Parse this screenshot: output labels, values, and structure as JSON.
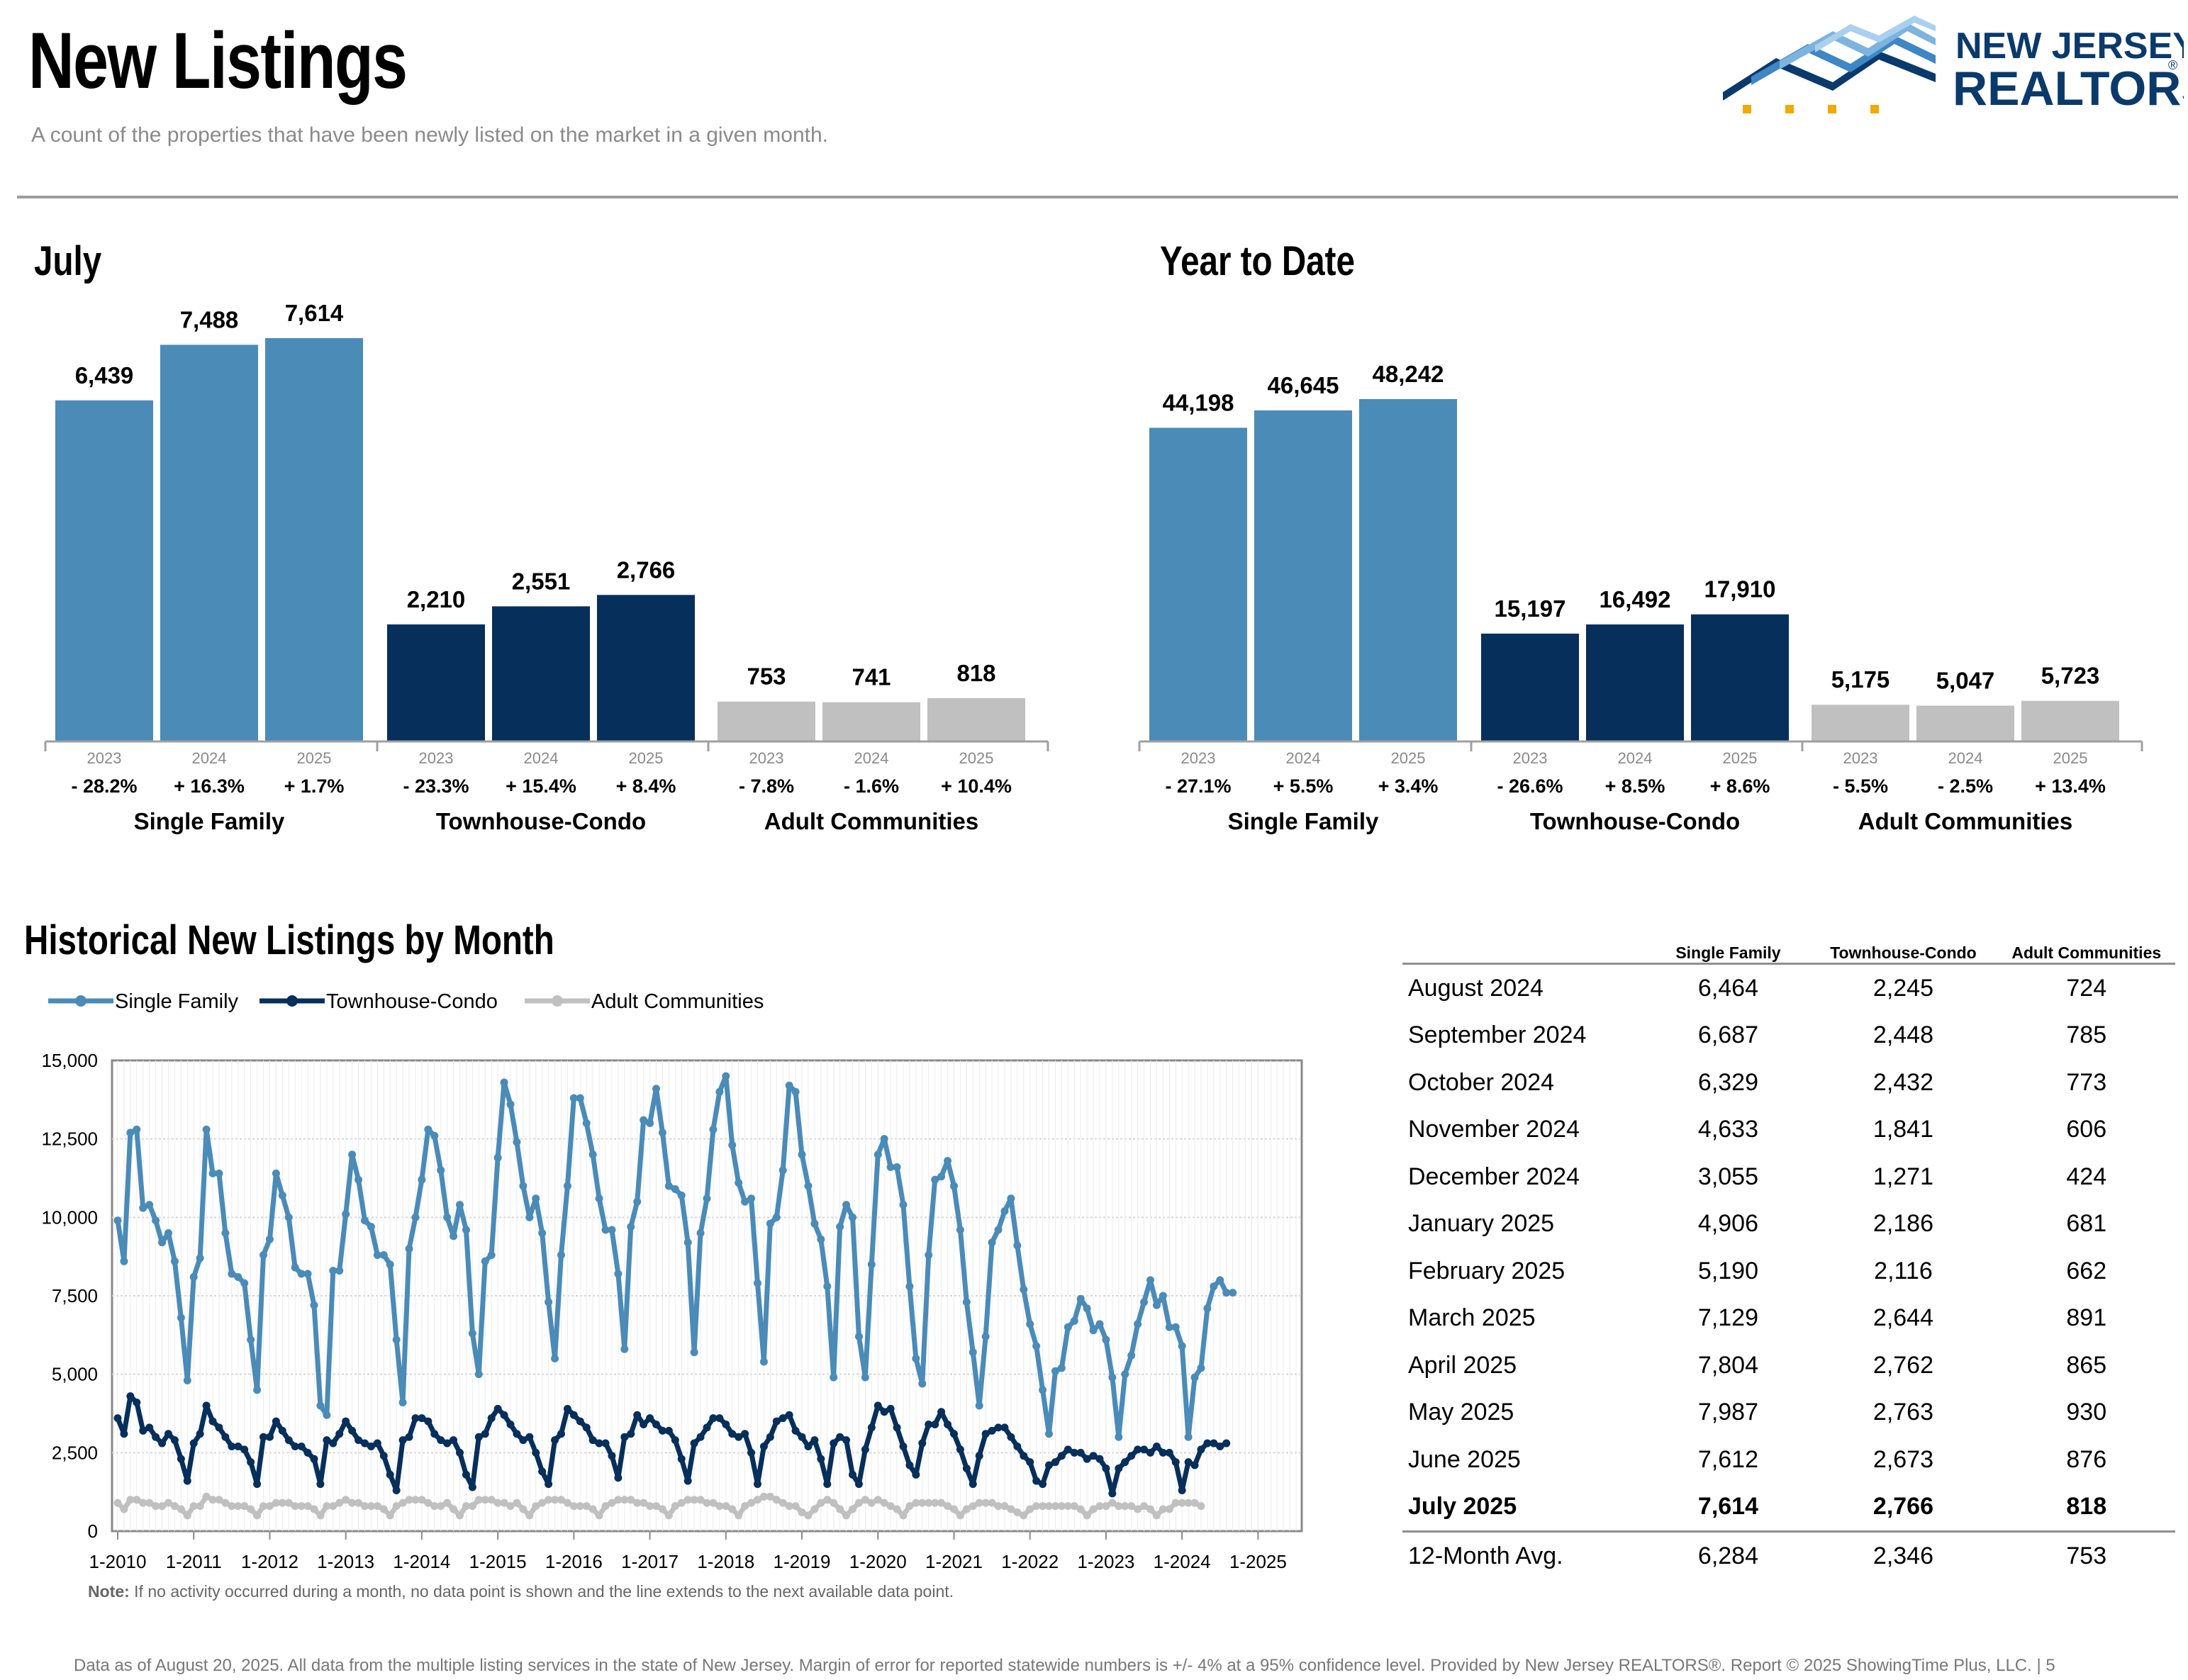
{
  "header": {
    "title": "New Listings",
    "subtitle": "A count of the properties that have been newly listed on the market in a given month.",
    "logo": {
      "line1": "NEW JERSEY",
      "line2": "REALTORS",
      "registered": "®"
    }
  },
  "colors": {
    "single_family": "#4a8bb8",
    "townhouse_condo": "#062f5b",
    "adult_communities": "#c0c0c0"
  },
  "chart_data": [
    {
      "id": "july",
      "type": "bar",
      "title": "July",
      "groups": [
        {
          "name": "Single Family",
          "years": [
            "2023",
            "2024",
            "2025"
          ],
          "values": [
            6439,
            7488,
            7614
          ],
          "value_labels": [
            "6,439",
            "7,488",
            "7,614"
          ],
          "changes": [
            "- 28.2%",
            "+ 16.3%",
            "+ 1.7%"
          ]
        },
        {
          "name": "Townhouse-Condo",
          "years": [
            "2023",
            "2024",
            "2025"
          ],
          "values": [
            2210,
            2551,
            2766
          ],
          "value_labels": [
            "2,210",
            "2,551",
            "2,766"
          ],
          "changes": [
            "- 23.3%",
            "+ 15.4%",
            "+ 8.4%"
          ]
        },
        {
          "name": "Adult Communities",
          "years": [
            "2023",
            "2024",
            "2025"
          ],
          "values": [
            753,
            741,
            818
          ],
          "value_labels": [
            "753",
            "741",
            "818"
          ],
          "changes": [
            "- 7.8%",
            "- 1.6%",
            "+ 10.4%"
          ]
        }
      ]
    },
    {
      "id": "ytd",
      "type": "bar",
      "title": "Year to Date",
      "groups": [
        {
          "name": "Single Family",
          "years": [
            "2023",
            "2024",
            "2025"
          ],
          "values": [
            44198,
            46645,
            48242
          ],
          "value_labels": [
            "44,198",
            "46,645",
            "48,242"
          ],
          "changes": [
            "- 27.1%",
            "+ 5.5%",
            "+ 3.4%"
          ]
        },
        {
          "name": "Townhouse-Condo",
          "years": [
            "2023",
            "2024",
            "2025"
          ],
          "values": [
            15197,
            16492,
            17910
          ],
          "value_labels": [
            "15,197",
            "16,492",
            "17,910"
          ],
          "changes": [
            "- 26.6%",
            "+ 8.5%",
            "+ 8.6%"
          ]
        },
        {
          "name": "Adult Communities",
          "years": [
            "2023",
            "2024",
            "2025"
          ],
          "values": [
            5175,
            5047,
            5723
          ],
          "value_labels": [
            "5,175",
            "5,047",
            "5,723"
          ],
          "changes": [
            "- 5.5%",
            "- 2.5%",
            "+ 13.4%"
          ]
        }
      ]
    },
    {
      "id": "historical",
      "type": "line",
      "title": "Historical New Listings by Month",
      "x_start": "1-2010",
      "x_ticks": [
        "1-2010",
        "1-2011",
        "1-2012",
        "1-2013",
        "1-2014",
        "1-2015",
        "1-2016",
        "1-2017",
        "1-2018",
        "1-2019",
        "1-2020",
        "1-2021",
        "1-2022",
        "1-2023",
        "1-2024",
        "1-2025"
      ],
      "y_ticks": [
        "0",
        "2,500",
        "5,000",
        "7,500",
        "10,000",
        "12,500",
        "15,000"
      ],
      "ylim": [
        0,
        15000
      ],
      "series": [
        {
          "name": "Single Family",
          "values": [
            9900,
            8600,
            12700,
            12800,
            10300,
            10400,
            9900,
            9200,
            9500,
            8600,
            6800,
            4800,
            8100,
            8700,
            12800,
            11400,
            11400,
            9500,
            8200,
            8100,
            7900,
            6100,
            4500,
            8800,
            9300,
            11400,
            10700,
            10000,
            8400,
            8200,
            8200,
            7200,
            4000,
            3700,
            8300,
            8300,
            10100,
            12000,
            11200,
            9900,
            9700,
            8800,
            8800,
            8500,
            6100,
            4100,
            9000,
            10000,
            11200,
            12800,
            12600,
            11500,
            10000,
            9400,
            10400,
            9600,
            6300,
            5000,
            8600,
            8800,
            11900,
            14300,
            13600,
            12400,
            11000,
            10000,
            10600,
            9500,
            7300,
            5500,
            8800,
            11000,
            13800,
            13800,
            13000,
            12000,
            10600,
            9600,
            9600,
            8200,
            5800,
            9700,
            10500,
            13100,
            13000,
            14100,
            12700,
            11000,
            10900,
            10700,
            9200,
            5700,
            9500,
            10600,
            12800,
            14000,
            14500,
            12300,
            11100,
            10500,
            10600,
            7900,
            5400,
            9800,
            10000,
            11500,
            14200,
            14000,
            12000,
            11000,
            9800,
            9300,
            7800,
            4900,
            9700,
            10400,
            10000,
            6200,
            4900,
            8500,
            12000,
            12500,
            11600,
            11600,
            10400,
            7800,
            5500,
            4700,
            8800,
            11200,
            11300,
            11800,
            11000,
            9600,
            7300,
            5700,
            4000,
            6200,
            9200,
            9600,
            10200,
            10600,
            9100,
            7700,
            6600,
            5900,
            4500,
            3100,
            5100,
            5200,
            6500,
            6700,
            7400,
            7100,
            6400,
            6600,
            6100,
            4900,
            3000,
            5000,
            5600,
            6600,
            7300,
            8000,
            7200,
            7500,
            6500,
            6500,
            5900,
            3000,
            4900,
            5200,
            7100,
            7800,
            8000,
            7600,
            7600
          ]
        },
        {
          "name": "Townhouse-Condo",
          "values": [
            3600,
            3100,
            4300,
            4100,
            3200,
            3300,
            3000,
            2800,
            3100,
            2900,
            2300,
            1600,
            2800,
            3100,
            4000,
            3500,
            3300,
            3000,
            2700,
            2700,
            2600,
            2200,
            1500,
            3000,
            3000,
            3500,
            3200,
            2900,
            2700,
            2700,
            2500,
            2300,
            1500,
            2900,
            2800,
            3100,
            3500,
            3200,
            2900,
            2800,
            2700,
            2800,
            2400,
            1800,
            1300,
            2900,
            3000,
            3600,
            3600,
            3500,
            3100,
            2900,
            2800,
            2900,
            2500,
            1800,
            1400,
            3000,
            3100,
            3600,
            3900,
            3700,
            3400,
            3100,
            2900,
            3000,
            2500,
            1900,
            1500,
            2900,
            3100,
            3900,
            3700,
            3500,
            3300,
            2900,
            2800,
            2800,
            2400,
            1700,
            3000,
            3100,
            3700,
            3400,
            3600,
            3400,
            3200,
            3200,
            2900,
            2300,
            1600,
            2800,
            3000,
            3300,
            3600,
            3600,
            3400,
            3100,
            3000,
            3100,
            2500,
            1500,
            2700,
            3000,
            3500,
            3600,
            3700,
            3200,
            3000,
            2700,
            2900,
            2300,
            1500,
            2800,
            3000,
            2900,
            1800,
            1500,
            2600,
            3300,
            4000,
            3800,
            3900,
            3300,
            2700,
            2100,
            1800,
            2800,
            3400,
            3400,
            3800,
            3400,
            3100,
            2600,
            2000,
            1500,
            2400,
            3100,
            3200,
            3300,
            3300,
            3000,
            2700,
            2400,
            2200,
            1600,
            1500,
            2100,
            2200,
            2400,
            2600,
            2500,
            2500,
            2300,
            2400,
            2300,
            2000,
            1200,
            2000,
            2200,
            2400,
            2600,
            2600,
            2500,
            2700,
            2500,
            2500,
            2200,
            1300,
            2200,
            2100,
            2600,
            2800,
            2800,
            2700,
            2800
          ]
        },
        {
          "name": "Adult Communities",
          "values": [
            900,
            700,
            1000,
            1000,
            900,
            900,
            800,
            800,
            900,
            800,
            700,
            500,
            800,
            800,
            1100,
            1000,
            1000,
            900,
            800,
            800,
            800,
            700,
            500,
            800,
            800,
            900,
            900,
            900,
            800,
            800,
            800,
            700,
            500,
            800,
            800,
            900,
            1000,
            900,
            900,
            800,
            800,
            800,
            700,
            500,
            800,
            900,
            1000,
            1000,
            1000,
            900,
            800,
            800,
            900,
            700,
            500,
            800,
            800,
            1000,
            1000,
            1000,
            900,
            900,
            800,
            900,
            700,
            500,
            800,
            900,
            1000,
            1000,
            1000,
            900,
            800,
            800,
            800,
            700,
            500,
            800,
            900,
            1000,
            1000,
            1000,
            900,
            900,
            800,
            800,
            700,
            500,
            800,
            900,
            1000,
            1000,
            1000,
            900,
            900,
            800,
            800,
            700,
            500,
            800,
            900,
            1000,
            1100,
            1100,
            1000,
            900,
            800,
            800,
            600,
            500,
            700,
            900,
            1000,
            900,
            700,
            500,
            700,
            900,
            1000,
            900,
            1000,
            900,
            800,
            700,
            500,
            800,
            900,
            900,
            900,
            900,
            900,
            800,
            700,
            500,
            700,
            800,
            900,
            900,
            900,
            800,
            800,
            700,
            600,
            500,
            700,
            800,
            800,
            800,
            800,
            800,
            800,
            800,
            700,
            500,
            700,
            800,
            800,
            900,
            800,
            800,
            800,
            700,
            800,
            700,
            500,
            700,
            700,
            900,
            900,
            900,
            900,
            800
          ]
        }
      ],
      "legend": [
        "Single Family",
        "Townhouse-Condo",
        "Adult Communities"
      ]
    },
    {
      "id": "monthly-table",
      "type": "table",
      "columns": [
        "Single Family",
        "Townhouse-Condo",
        "Adult Communities"
      ],
      "rows": [
        {
          "label": "August 2024",
          "values": [
            "6,464",
            "2,245",
            "724"
          ]
        },
        {
          "label": "September 2024",
          "values": [
            "6,687",
            "2,448",
            "785"
          ]
        },
        {
          "label": "October 2024",
          "values": [
            "6,329",
            "2,432",
            "773"
          ]
        },
        {
          "label": "November 2024",
          "values": [
            "4,633",
            "1,841",
            "606"
          ]
        },
        {
          "label": "December 2024",
          "values": [
            "3,055",
            "1,271",
            "424"
          ]
        },
        {
          "label": "January 2025",
          "values": [
            "4,906",
            "2,186",
            "681"
          ]
        },
        {
          "label": "February 2025",
          "values": [
            "5,190",
            "2,116",
            "662"
          ]
        },
        {
          "label": "March 2025",
          "values": [
            "7,129",
            "2,644",
            "891"
          ]
        },
        {
          "label": "April 2025",
          "values": [
            "7,804",
            "2,762",
            "865"
          ]
        },
        {
          "label": "May 2025",
          "values": [
            "7,987",
            "2,763",
            "930"
          ]
        },
        {
          "label": "June 2025",
          "values": [
            "7,612",
            "2,673",
            "876"
          ]
        },
        {
          "label": "July 2025",
          "values": [
            "7,614",
            "2,766",
            "818"
          ]
        },
        {
          "label": "12-Month Avg.",
          "values": [
            "6,284",
            "2,346",
            "753"
          ]
        }
      ]
    }
  ],
  "note": {
    "label": "Note:",
    "text": " If no activity occurred during a month, no data point is shown and the line extends to the next available data point."
  },
  "footer": "Data as of August 20, 2025. All data from the multiple listing services in the state of New Jersey. Margin of error for reported statewide numbers is +/- 4% at a 95% confidence level. Provided by New Jersey REALTORS®. Report © 2025 ShowingTime Plus, LLC. |  5"
}
